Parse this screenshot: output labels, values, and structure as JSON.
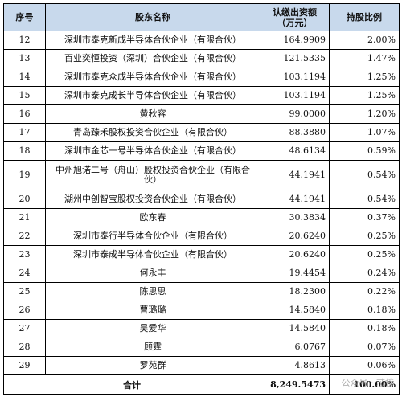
{
  "table": {
    "headers": {
      "no": "序号",
      "name": "股东名称",
      "amount_line1": "认缴出资额",
      "amount_line2": "（万元）",
      "ratio": "持股比例"
    },
    "rows": [
      {
        "no": "12",
        "name": "深圳市泰克新成半导体合伙企业（有限合伙）",
        "amount": "164.9909",
        "ratio": "2.00%"
      },
      {
        "no": "13",
        "name": "百业奕恒投资（深圳）合伙企业（有限合伙）",
        "amount": "121.5335",
        "ratio": "1.47%"
      },
      {
        "no": "14",
        "name": "深圳市泰克众成半导体合伙企业（有限合伙）",
        "amount": "103.1194",
        "ratio": "1.25%"
      },
      {
        "no": "15",
        "name": "深圳市泰克成长半导体合伙企业（有限合伙）",
        "amount": "103.1194",
        "ratio": "1.25%"
      },
      {
        "no": "16",
        "name": "黄秋容",
        "amount": "99.0000",
        "ratio": "1.20%"
      },
      {
        "no": "17",
        "name": "青岛臻禾股权投资合伙企业（有限合伙）",
        "amount": "88.3880",
        "ratio": "1.07%"
      },
      {
        "no": "18",
        "name": "深圳市金芯一号半导体合伙企业（有限合伙）",
        "amount": "48.6134",
        "ratio": "0.59%"
      },
      {
        "no": "19",
        "name": "中州旭诺二号（舟山）股权投资合伙企业（有限合伙）",
        "amount": "44.1941",
        "ratio": "0.54%"
      },
      {
        "no": "20",
        "name": "湖州中创智宝股权投资合伙企业（有限合伙）",
        "amount": "44.1941",
        "ratio": "0.54%"
      },
      {
        "no": "21",
        "name": "欧东春",
        "amount": "30.3834",
        "ratio": "0.37%"
      },
      {
        "no": "22",
        "name": "深圳市泰行半导体合伙企业（有限合伙）",
        "amount": "20.6240",
        "ratio": "0.25%"
      },
      {
        "no": "23",
        "name": "深圳市泰成半导体合伙企业（有限合伙）",
        "amount": "20.6240",
        "ratio": "0.25%"
      },
      {
        "no": "24",
        "name": "何永丰",
        "amount": "19.4454",
        "ratio": "0.24%"
      },
      {
        "no": "25",
        "name": "陈思思",
        "amount": "18.2300",
        "ratio": "0.22%"
      },
      {
        "no": "26",
        "name": "曹璐璐",
        "amount": "14.5840",
        "ratio": "0.18%"
      },
      {
        "no": "27",
        "name": "吴爱华",
        "amount": "14.5840",
        "ratio": "0.18%"
      },
      {
        "no": "28",
        "name": "顾霆",
        "amount": "6.0767",
        "ratio": "0.07%"
      },
      {
        "no": "29",
        "name": "罗苑群",
        "amount": "4.8613",
        "ratio": "0.06%"
      }
    ],
    "total": {
      "label": "合计",
      "amount": "8,249.5473",
      "ratio": "100.00%"
    }
  },
  "watermark": "公众号 · 芯榜"
}
